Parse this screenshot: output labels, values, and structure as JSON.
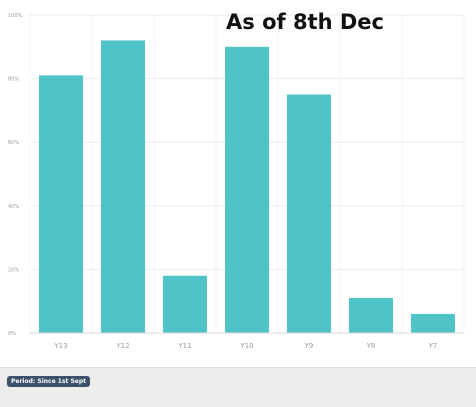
{
  "chart_data": {
    "type": "bar",
    "title": "As of 8th Dec",
    "categories": [
      "Y13",
      "Y12",
      "Y11",
      "Y10",
      "Y9",
      "Y8",
      "Y7"
    ],
    "values": [
      81,
      92,
      18,
      90,
      75,
      11,
      6
    ],
    "ylim": [
      0,
      100
    ],
    "yticks": [
      "0%",
      "20%",
      "40%",
      "60%",
      "80%",
      "100%"
    ],
    "bar_color": "#4fc3c7",
    "grid": true
  },
  "footer": {
    "period_label": "Period: Since 1st Sept"
  }
}
